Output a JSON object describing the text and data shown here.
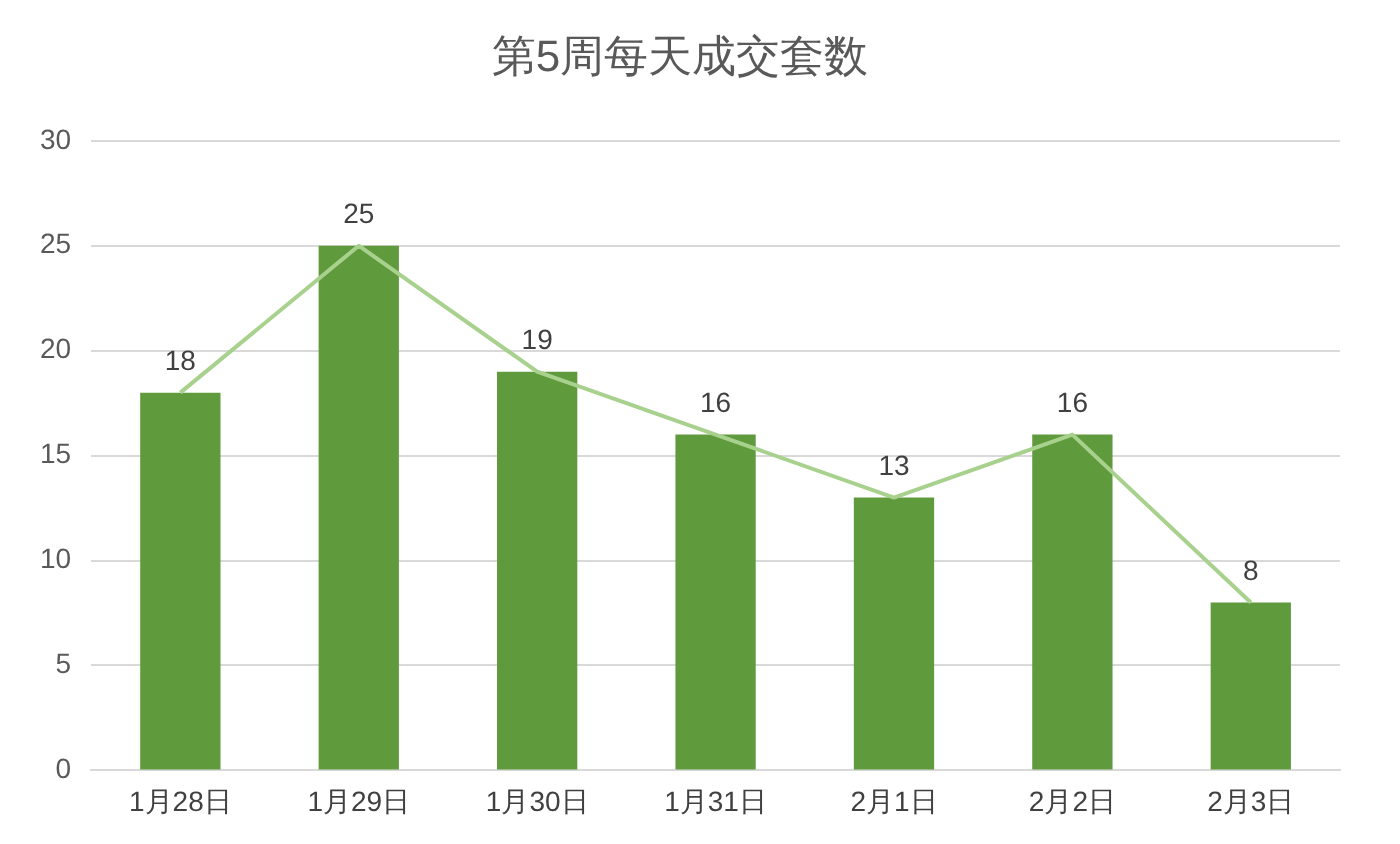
{
  "chart_data": {
    "type": "bar",
    "title": "第5周每天成交套数",
    "categories": [
      "1月28日",
      "1月29日",
      "1月30日",
      "1月31日",
      "2月1日",
      "2月2日",
      "2月3日"
    ],
    "series": [
      {
        "color": "#5f9a3c",
        "values": [
          18,
          25,
          19,
          16,
          13,
          16,
          8
        ],
        "value_labels": [
          "18",
          "25",
          "19",
          "16",
          "13",
          "16",
          "8"
        ]
      },
      {
        "type": "line",
        "color": "#a9d18e",
        "values": [
          18,
          25,
          19,
          16,
          13,
          16,
          8
        ]
      }
    ],
    "ylim": [
      0,
      30
    ],
    "yticks": [
      0,
      5,
      10,
      15,
      20,
      25,
      30
    ],
    "grid": "y",
    "legend": false,
    "marker": "none"
  }
}
